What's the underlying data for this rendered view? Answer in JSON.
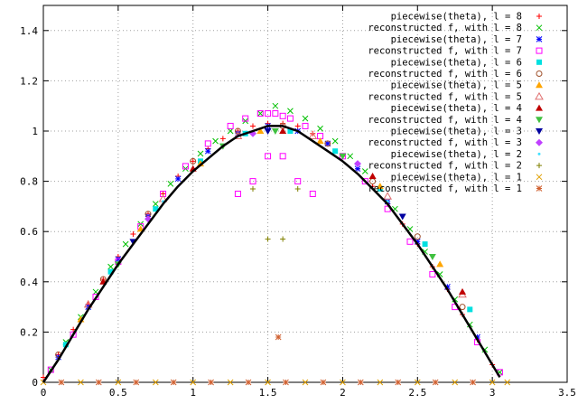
{
  "chart_data": {
    "type": "scatter",
    "title": "",
    "xlabel": "",
    "ylabel": "",
    "xlim": [
      0,
      3.5
    ],
    "ylim": [
      0,
      1.5
    ],
    "grid": true,
    "legend_position": "top-right",
    "x_ticks": [
      0,
      0.5,
      1,
      1.5,
      2,
      2.5,
      3,
      3.5
    ],
    "x_tick_labels": [
      "0",
      "0.5",
      "1",
      "1.5",
      "2",
      "2.5",
      "3",
      "3.5"
    ],
    "y_ticks": [
      0,
      0.2,
      0.4,
      0.6,
      0.8,
      1.0,
      1.2,
      1.4
    ],
    "y_tick_labels": [
      "0",
      "0.2",
      "0.4",
      "0.6",
      "0.8",
      "1",
      "1.2",
      "1.4"
    ],
    "curve": {
      "x": [
        0,
        0.1,
        0.2,
        0.3,
        0.4,
        0.5,
        0.6,
        0.7,
        0.8,
        0.9,
        1.0,
        1.1,
        1.2,
        1.3,
        1.4,
        1.5,
        1.6,
        1.7,
        1.8,
        1.9,
        2.0,
        2.1,
        2.2,
        2.3,
        2.4,
        2.5,
        2.6,
        2.7,
        2.8,
        2.9,
        3.0,
        3.05
      ],
      "y": [
        0,
        0.09,
        0.19,
        0.29,
        0.38,
        0.47,
        0.55,
        0.63,
        0.71,
        0.78,
        0.84,
        0.89,
        0.94,
        0.98,
        1.0,
        1.02,
        1.02,
        1.0,
        0.96,
        0.92,
        0.88,
        0.83,
        0.77,
        0.71,
        0.63,
        0.55,
        0.46,
        0.37,
        0.27,
        0.17,
        0.07,
        0.02
      ]
    },
    "series": [
      {
        "name": "piecewise(theta), l = 8",
        "color": "#ff0000",
        "marker": "plus",
        "x": [
          0,
          0.1,
          0.2,
          0.3,
          0.4,
          0.5,
          0.6,
          0.7,
          0.8,
          0.9,
          1.0,
          1.1,
          1.2,
          1.3,
          1.4,
          1.5,
          1.6,
          1.7,
          1.8,
          1.9,
          2.0,
          2.1,
          2.2,
          2.3,
          2.4,
          2.5,
          2.6,
          2.7,
          2.8,
          2.9,
          3.0
        ],
        "y": [
          0.02,
          0.11,
          0.21,
          0.31,
          0.41,
          0.5,
          0.59,
          0.67,
          0.75,
          0.82,
          0.88,
          0.93,
          0.97,
          1.0,
          1.02,
          1.03,
          1.03,
          1.02,
          0.99,
          0.95,
          0.9,
          0.85,
          0.78,
          0.71,
          0.63,
          0.55,
          0.46,
          0.37,
          0.27,
          0.17,
          0.07
        ]
      },
      {
        "name": "reconstructed f, with l = 8",
        "color": "#00c000",
        "marker": "cross",
        "x": [
          0.05,
          0.15,
          0.25,
          0.35,
          0.45,
          0.55,
          0.65,
          0.75,
          0.85,
          0.95,
          1.05,
          1.15,
          1.25,
          1.35,
          1.45,
          1.55,
          1.65,
          1.75,
          1.85,
          1.95,
          2.05,
          2.15,
          2.25,
          2.35,
          2.45,
          2.55,
          2.65,
          2.75,
          2.85,
          2.95,
          3.05
        ],
        "y": [
          0.05,
          0.16,
          0.26,
          0.36,
          0.46,
          0.55,
          0.63,
          0.71,
          0.79,
          0.85,
          0.91,
          0.96,
          1.0,
          1.04,
          1.07,
          1.1,
          1.08,
          1.05,
          1.01,
          0.96,
          0.9,
          0.84,
          0.77,
          0.69,
          0.61,
          0.52,
          0.43,
          0.33,
          0.23,
          0.13,
          0.04
        ]
      },
      {
        "name": "piecewise(theta), l = 7",
        "color": "#0000ff",
        "marker": "star",
        "x": [
          0.1,
          0.3,
          0.5,
          0.7,
          0.9,
          1.1,
          1.3,
          1.5,
          1.7,
          1.9,
          2.1,
          2.3,
          2.5,
          2.7,
          2.9
        ],
        "y": [
          0.1,
          0.3,
          0.49,
          0.66,
          0.81,
          0.92,
          0.99,
          1.02,
          1.0,
          0.95,
          0.85,
          0.72,
          0.56,
          0.38,
          0.18
        ]
      },
      {
        "name": "reconstructed f, with l = 7",
        "color": "#ff00ff",
        "marker": "square",
        "x": [
          0.05,
          0.2,
          0.35,
          0.5,
          0.65,
          0.8,
          0.95,
          1.1,
          1.25,
          1.35,
          1.45,
          1.5,
          1.55,
          1.6,
          1.65,
          1.75,
          1.85,
          2.0,
          2.15,
          2.3,
          2.45,
          2.6,
          2.75,
          2.9,
          3.05,
          1.3,
          1.4,
          1.5,
          1.6,
          1.7,
          1.8
        ],
        "y": [
          0.05,
          0.19,
          0.34,
          0.48,
          0.62,
          0.75,
          0.86,
          0.95,
          1.02,
          1.05,
          1.07,
          1.07,
          1.07,
          1.06,
          1.05,
          1.02,
          0.98,
          0.9,
          0.8,
          0.69,
          0.56,
          0.43,
          0.3,
          0.16,
          0.04,
          0.75,
          0.8,
          0.9,
          0.9,
          0.8,
          0.75
        ]
      },
      {
        "name": "piecewise(theta), l = 6",
        "color": "#00e0e0",
        "marker": "filled-square",
        "x": [
          0.15,
          0.45,
          0.75,
          1.05,
          1.35,
          1.65,
          1.95,
          2.25,
          2.55,
          2.85
        ],
        "y": [
          0.15,
          0.44,
          0.69,
          0.88,
          0.99,
          1.0,
          0.92,
          0.77,
          0.55,
          0.29
        ]
      },
      {
        "name": "reconstructed f, with l = 6",
        "color": "#a0522d",
        "marker": "circle",
        "x": [
          0.1,
          0.4,
          0.7,
          1.0,
          1.3,
          1.6,
          1.9,
          2.2,
          2.5,
          2.8
        ],
        "y": [
          0.11,
          0.41,
          0.67,
          0.88,
          1.0,
          1.02,
          0.95,
          0.8,
          0.58,
          0.3
        ]
      },
      {
        "name": "piecewise(theta), l = 5",
        "color": "#ffa500",
        "marker": "triangle",
        "x": [
          0.25,
          0.65,
          1.05,
          1.45,
          1.85,
          2.25,
          2.65
        ],
        "y": [
          0.25,
          0.61,
          0.87,
          1.0,
          0.96,
          0.78,
          0.47
        ]
      },
      {
        "name": "reconstructed f, with l = 5",
        "color": "#e07070",
        "marker": "triangle-open",
        "x": [
          0.3,
          0.8,
          1.3,
          1.8,
          2.3,
          2.8
        ],
        "y": [
          0.31,
          0.73,
          0.98,
          0.98,
          0.74,
          0.35
        ]
      },
      {
        "name": "piecewise(theta), l = 4",
        "color": "#c00000",
        "marker": "triangle",
        "x": [
          0.4,
          1.0,
          1.6,
          2.2,
          2.8
        ],
        "y": [
          0.4,
          0.85,
          1.0,
          0.82,
          0.36
        ]
      },
      {
        "name": "reconstructed f, with l = 4",
        "color": "#40c040",
        "marker": "triangle-down",
        "x": [
          0.5,
          1.2,
          1.55,
          2.0,
          2.6
        ],
        "y": [
          0.47,
          0.94,
          1.0,
          0.9,
          0.5
        ]
      },
      {
        "name": "piecewise(theta), l = 3",
        "color": "#0000a0",
        "marker": "triangle-down",
        "x": [
          0.6,
          1.5,
          2.4
        ],
        "y": [
          0.56,
          1.0,
          0.66
        ]
      },
      {
        "name": "reconstructed f, with l = 3",
        "color": "#c040ff",
        "marker": "diamond",
        "x": [
          0.7,
          1.4,
          2.1
        ],
        "y": [
          0.65,
          0.99,
          0.87
        ]
      },
      {
        "name": "piecewise(theta), l = 2",
        "color": "#40e0ff",
        "marker": "point",
        "x": [
          0.8,
          2.3
        ],
        "y": [
          0.72,
          0.72
        ]
      },
      {
        "name": "reconstructed f, with l = 2",
        "color": "#808000",
        "marker": "plus",
        "x": [
          1.5,
          1.6,
          1.4,
          1.7
        ],
        "y": [
          0.57,
          0.57,
          0.77,
          0.77
        ]
      },
      {
        "name": "piecewise(theta), l = 1",
        "color": "#e0a000",
        "marker": "cross",
        "x": [
          0,
          0.25,
          0.5,
          0.75,
          1.0,
          1.25,
          1.5,
          1.75,
          2.0,
          2.25,
          2.5,
          2.75,
          3.0,
          3.1
        ],
        "y": [
          0,
          0,
          0,
          0,
          0,
          0,
          0,
          0,
          0,
          0,
          0,
          0,
          0,
          0
        ]
      },
      {
        "name": "reconstructed f, with l = 1",
        "color": "#d06030",
        "marker": "star",
        "x": [
          1.57,
          0.12,
          0.37,
          0.62,
          0.87,
          1.12,
          1.37,
          1.62,
          1.87,
          2.12,
          2.37,
          2.62,
          2.87
        ],
        "y": [
          0.18,
          0,
          0,
          0,
          0,
          0,
          0,
          0,
          0,
          0,
          0,
          0,
          0
        ]
      }
    ]
  }
}
